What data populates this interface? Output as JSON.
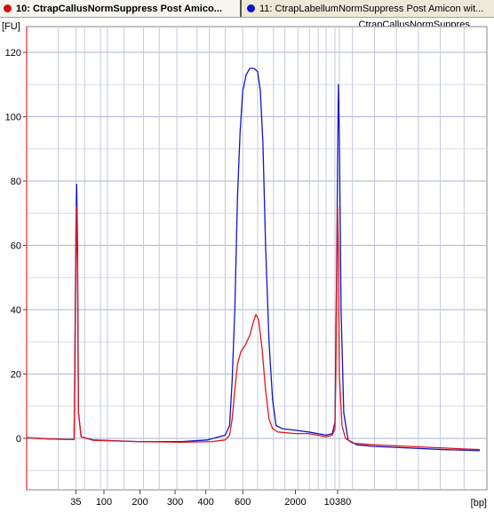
{
  "tabs": [
    {
      "label": "10: CtrapCallusNormSuppress Post Amico...",
      "color": "#d01010"
    },
    {
      "label": "11: CtrapLabellumNormSuppress Post Amicon wit...",
      "color": "#1010c8"
    }
  ],
  "legend_label": "CtrapCallusNormSuppres...",
  "colors": {
    "series_blue": "#1414c8",
    "series_red": "#e01818",
    "grid": "#aab4d4",
    "axis_accent": "#e05050"
  },
  "chart_data": {
    "type": "line",
    "ylabel": "[FU]",
    "xlabel": "[bp]",
    "ylim": [
      -16,
      128
    ],
    "yticks": [
      0,
      20,
      40,
      60,
      80,
      100,
      120
    ],
    "x_axis_scale": "time (bp ladder, non-linear)",
    "xticks": [
      "35",
      "100",
      "200",
      "300",
      "400",
      "600",
      "2000",
      "10380"
    ],
    "grid": true,
    "series": [
      {
        "name": "11: CtrapLabellumNormSuppress Post Amicon wit...",
        "color": "#1414c8",
        "points": [
          [
            24,
            0.2
          ],
          [
            50,
            -0.2
          ],
          [
            78,
            -0.4
          ],
          [
            80,
            62
          ],
          [
            81,
            79
          ],
          [
            82,
            60
          ],
          [
            83,
            8
          ],
          [
            86,
            0.5
          ],
          [
            100,
            -0.5
          ],
          [
            150,
            -1
          ],
          [
            200,
            -1
          ],
          [
            230,
            -0.5
          ],
          [
            250,
            1
          ],
          [
            255,
            4
          ],
          [
            258,
            18
          ],
          [
            261,
            40
          ],
          [
            264,
            75
          ],
          [
            267,
            95
          ],
          [
            270,
            108
          ],
          [
            274,
            113
          ],
          [
            278,
            115
          ],
          [
            283,
            115
          ],
          [
            287,
            114
          ],
          [
            290,
            108
          ],
          [
            293,
            92
          ],
          [
            296,
            60
          ],
          [
            300,
            30
          ],
          [
            304,
            12
          ],
          [
            308,
            4
          ],
          [
            315,
            3
          ],
          [
            330,
            2.5
          ],
          [
            345,
            2
          ],
          [
            365,
            1
          ],
          [
            372,
            1.5
          ],
          [
            375,
            5
          ],
          [
            377,
            55
          ],
          [
            378,
            85
          ],
          [
            379,
            110
          ],
          [
            380,
            95
          ],
          [
            382,
            40
          ],
          [
            385,
            8
          ],
          [
            390,
            -0.5
          ],
          [
            400,
            -2
          ],
          [
            420,
            -2.5
          ],
          [
            460,
            -3
          ],
          [
            500,
            -3.5
          ],
          [
            540,
            -3.8
          ]
        ]
      },
      {
        "name": "10: CtrapCallusNormSuppress Post Amico...",
        "color": "#e01818",
        "points": [
          [
            24,
            0.2
          ],
          [
            50,
            -0.2
          ],
          [
            78,
            -0.4
          ],
          [
            80,
            55
          ],
          [
            81,
            72
          ],
          [
            82,
            50
          ],
          [
            83,
            8
          ],
          [
            86,
            0.5
          ],
          [
            100,
            -0.6
          ],
          [
            150,
            -1
          ],
          [
            200,
            -1.2
          ],
          [
            235,
            -1
          ],
          [
            250,
            -0.5
          ],
          [
            255,
            1
          ],
          [
            258,
            6
          ],
          [
            261,
            15
          ],
          [
            264,
            23
          ],
          [
            268,
            27
          ],
          [
            273,
            29
          ],
          [
            278,
            32
          ],
          [
            282,
            36
          ],
          [
            285,
            38.5
          ],
          [
            288,
            37
          ],
          [
            292,
            28
          ],
          [
            296,
            15
          ],
          [
            300,
            6
          ],
          [
            304,
            3
          ],
          [
            310,
            2
          ],
          [
            330,
            1.5
          ],
          [
            345,
            1.5
          ],
          [
            365,
            0.5
          ],
          [
            372,
            1
          ],
          [
            375,
            3
          ],
          [
            376,
            20
          ],
          [
            377,
            50
          ],
          [
            378,
            72
          ],
          [
            379,
            55
          ],
          [
            380,
            20
          ],
          [
            383,
            4
          ],
          [
            387,
            0
          ],
          [
            395,
            -1.5
          ],
          [
            420,
            -2
          ],
          [
            460,
            -2.5
          ],
          [
            500,
            -3
          ],
          [
            540,
            -3.5
          ]
        ]
      }
    ]
  }
}
